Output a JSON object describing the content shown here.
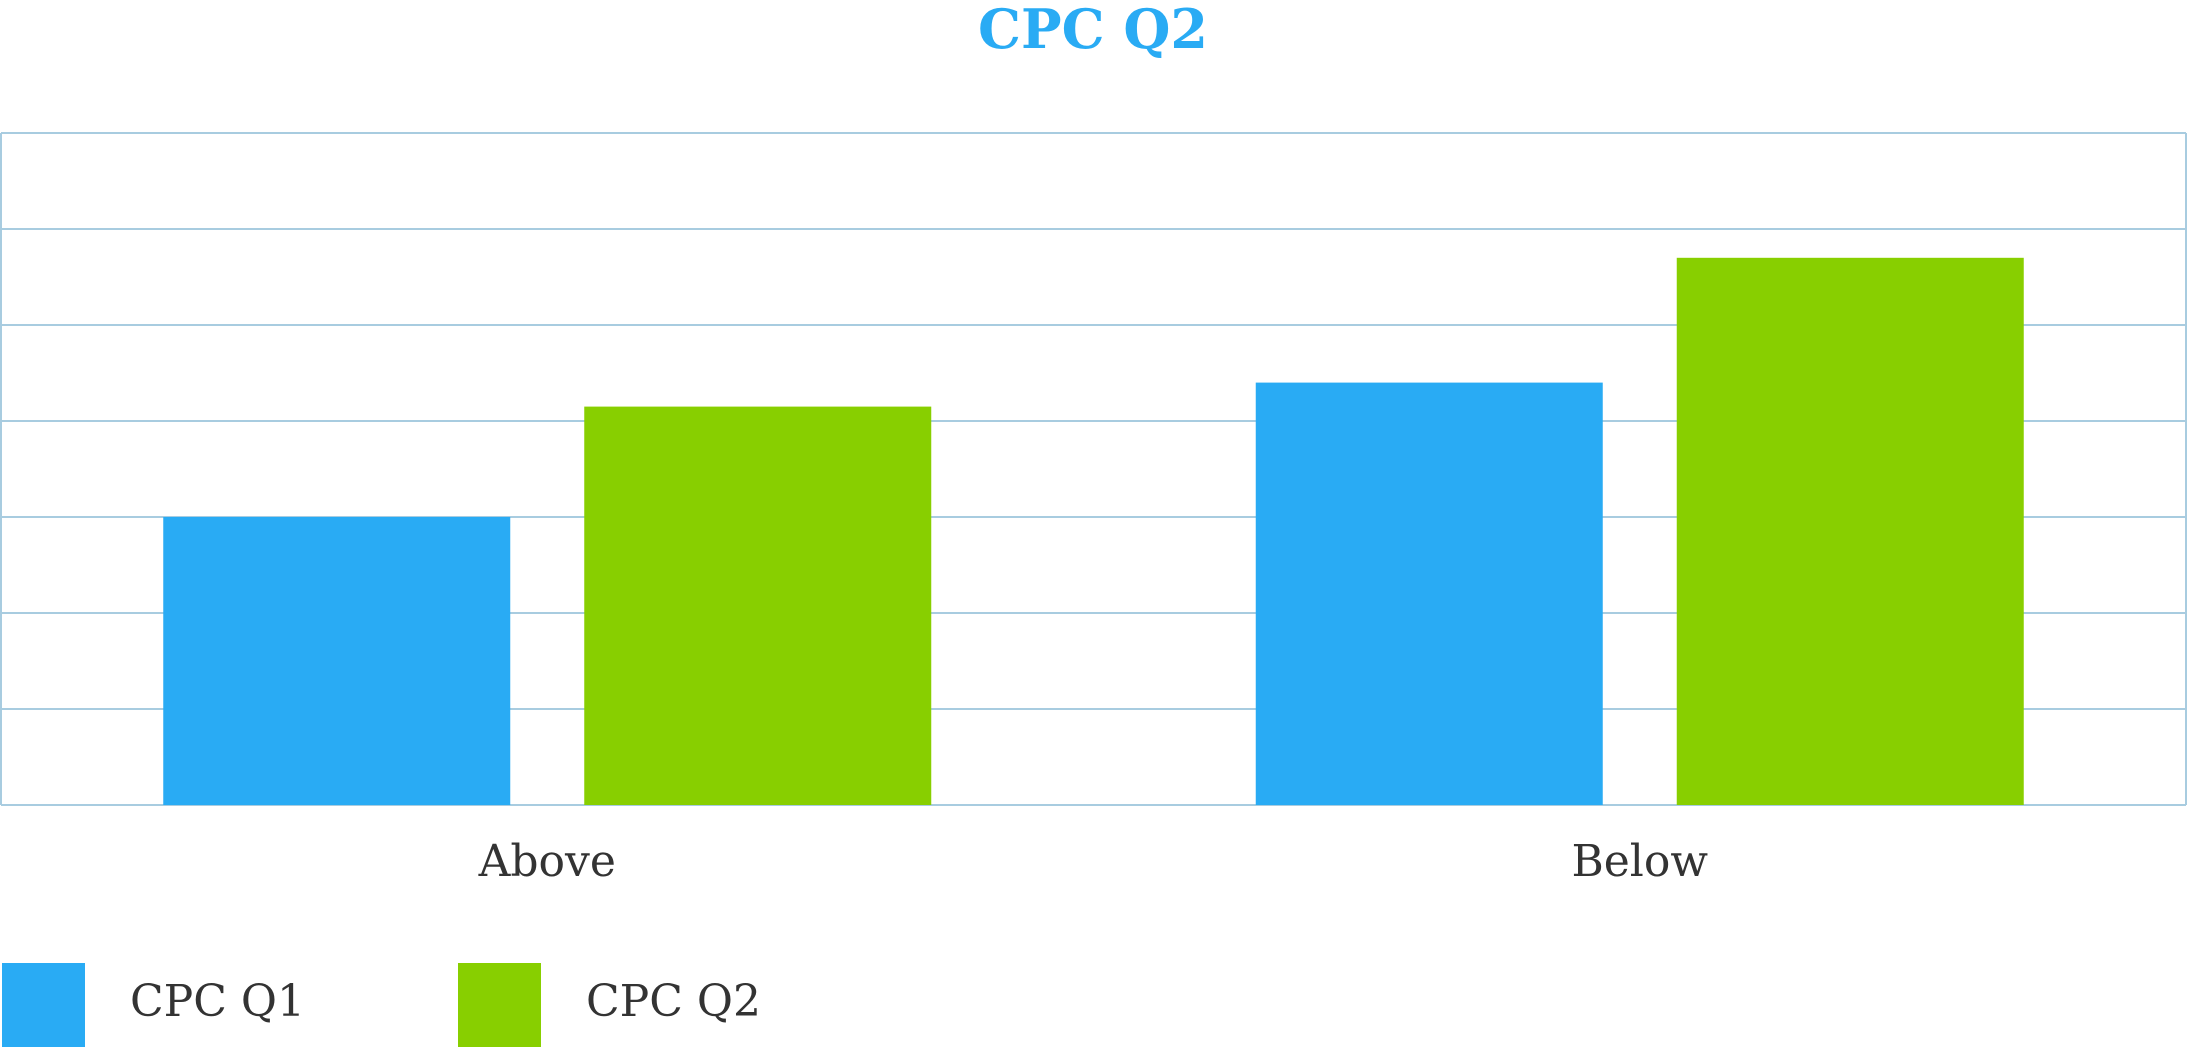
{
  "chart_data": {
    "type": "bar",
    "title": "CPC Q2",
    "xlabel": "",
    "ylabel": "",
    "categories": [
      "Above",
      "Below"
    ],
    "series": [
      {
        "name": "CPC Q1",
        "values": [
          3.0,
          4.4
        ]
      },
      {
        "name": "CPC Q2",
        "values": [
          4.15,
          5.7
        ]
      }
    ],
    "ylim": [
      0,
      7
    ],
    "grid": true,
    "legend": "bottom-left",
    "colors": {
      "title": "#29ABF4",
      "series": [
        "#29ABF4",
        "#88CF00"
      ],
      "grid": "#A8CCE0",
      "text": "#333333"
    }
  }
}
